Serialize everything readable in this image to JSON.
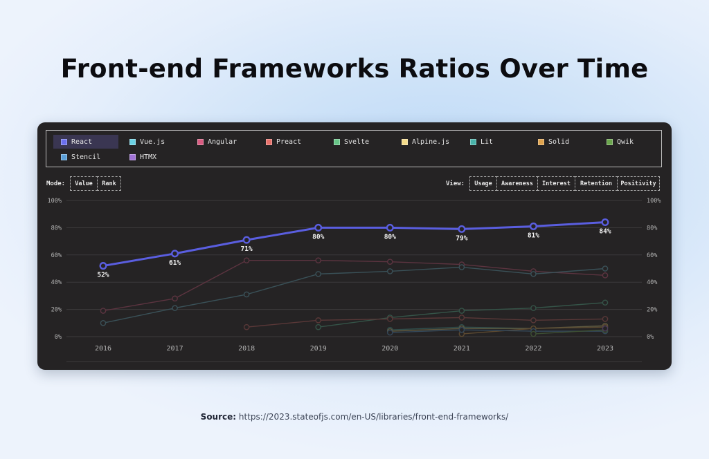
{
  "page": {
    "title": "Front-end Frameworks Ratios Over Time",
    "source_label": "Source:",
    "source_url": "https://2023.stateofjs.com/en-US/libraries/front-end-frameworks/"
  },
  "controls": {
    "mode_label": "Mode:",
    "mode_buttons": [
      "Value",
      "Rank"
    ],
    "view_label": "View:",
    "view_buttons": [
      "Usage",
      "Awareness",
      "Interest",
      "Retention",
      "Positivity"
    ]
  },
  "colors": {
    "accent": "#5a5ee0",
    "grid": "#3d3b3c",
    "axis_text": "#b4b4b4",
    "label_text": "#f2f2f2"
  },
  "legend": [
    {
      "name": "React",
      "color": "#6b6ff0",
      "active": true
    },
    {
      "name": "Vue.js",
      "color": "#6ad1e3"
    },
    {
      "name": "Angular",
      "color": "#d95c82"
    },
    {
      "name": "Preact",
      "color": "#e8716b"
    },
    {
      "name": "Svelte",
      "color": "#67c587"
    },
    {
      "name": "Alpine.js",
      "color": "#f5dc8a"
    },
    {
      "name": "Lit",
      "color": "#49b3aa"
    },
    {
      "name": "Solid",
      "color": "#e0a34d"
    },
    {
      "name": "Qwik",
      "color": "#6ba64d"
    },
    {
      "name": "Stencil",
      "color": "#5a9fd8"
    },
    {
      "name": "HTMX",
      "color": "#a072d6"
    }
  ],
  "chart_data": {
    "type": "line",
    "title": "Front-end Frameworks Ratios Over Time",
    "metric": "Usage",
    "x": [
      2016,
      2017,
      2018,
      2019,
      2020,
      2021,
      2022,
      2023
    ],
    "ylim": [
      0,
      100
    ],
    "y_ticks": [
      "0%",
      "20%",
      "40%",
      "60%",
      "80%",
      "100%"
    ],
    "grid": true,
    "series": [
      {
        "name": "React",
        "color": "#5a5ee0",
        "highlight": true,
        "values": [
          52,
          61,
          71,
          80,
          80,
          79,
          81,
          84
        ],
        "labels": [
          "52%",
          "61%",
          "71%",
          "80%",
          "80%",
          "79%",
          "81%",
          "84%"
        ]
      },
      {
        "name": "Angular",
        "color": "#5c3440",
        "values": [
          19,
          28,
          56,
          56,
          55,
          53,
          48,
          45
        ]
      },
      {
        "name": "Vue.js",
        "color": "#3a5158",
        "values": [
          10,
          21,
          31,
          46,
          48,
          51,
          46,
          50
        ]
      },
      {
        "name": "Svelte",
        "color": "#355448",
        "values": [
          null,
          null,
          null,
          7,
          14,
          19,
          21,
          25
        ]
      },
      {
        "name": "Preact",
        "color": "#5a3838",
        "values": [
          null,
          null,
          7,
          12,
          13,
          14,
          12,
          13
        ]
      },
      {
        "name": "Lit",
        "color": "#2f4e4c",
        "values": [
          null,
          null,
          null,
          null,
          5,
          7,
          6,
          7
        ]
      },
      {
        "name": "Alpine.js",
        "color": "#5e5940",
        "values": [
          null,
          null,
          null,
          null,
          4,
          6,
          6,
          8
        ]
      },
      {
        "name": "Solid",
        "color": "#5c4930",
        "values": [
          null,
          null,
          null,
          null,
          null,
          2,
          6,
          7
        ]
      },
      {
        "name": "Stencil",
        "color": "#34485a",
        "values": [
          null,
          null,
          null,
          null,
          3,
          5,
          4,
          4
        ]
      },
      {
        "name": "Qwik",
        "color": "#3d4f33",
        "values": [
          null,
          null,
          null,
          null,
          null,
          null,
          2,
          5
        ]
      },
      {
        "name": "HTMX",
        "color": "#4a3b5a",
        "values": [
          null,
          null,
          null,
          null,
          null,
          null,
          null,
          6
        ]
      }
    ]
  }
}
